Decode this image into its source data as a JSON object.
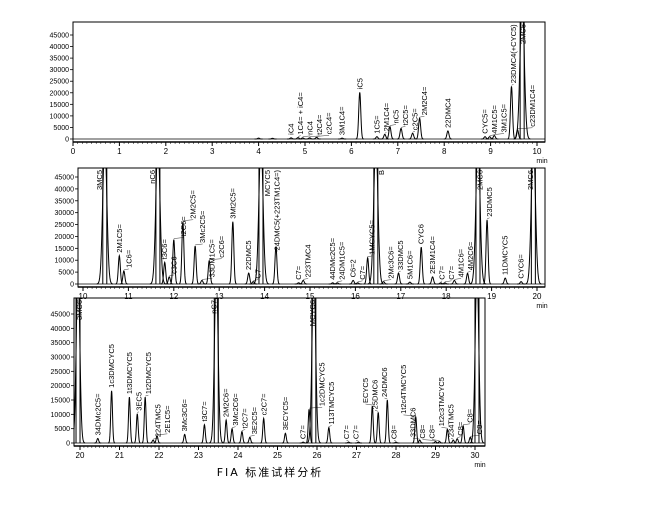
{
  "caption": "FIA 标准试样分析",
  "chart_data": [
    {
      "type": "line",
      "xlim": [
        0,
        10
      ],
      "ylim": [
        0,
        45000
      ],
      "xticks": [
        0,
        1,
        2,
        3,
        4,
        5,
        6,
        7,
        8,
        9,
        10
      ],
      "yticks": [
        0,
        5000,
        10000,
        15000,
        20000,
        25000,
        30000,
        35000,
        40000,
        45000
      ],
      "xlabel": "min",
      "peaks": [
        {
          "rt": 4.0,
          "height": 400,
          "label": ""
        },
        {
          "rt": 4.3,
          "height": 300,
          "label": ""
        },
        {
          "rt": 4.7,
          "height": 500,
          "label": "iC4"
        },
        {
          "rt": 4.85,
          "height": 600,
          "label": "1C4= + iC4="
        },
        {
          "rt": 4.95,
          "height": 500,
          "label": "nC4"
        },
        {
          "rt": 5.1,
          "height": 500,
          "label": "t2C4="
        },
        {
          "rt": 5.25,
          "height": 700,
          "label": "c2C4="
        },
        {
          "rt": 5.8,
          "height": 400,
          "label": "3M1C4="
        },
        {
          "rt": 6.18,
          "height": 20200,
          "label": "iC5"
        },
        {
          "rt": 6.55,
          "height": 1000,
          "label": "1C5="
        },
        {
          "rt": 6.72,
          "height": 2000,
          "label": "2M1C4="
        },
        {
          "rt": 6.83,
          "height": 5400,
          "label": "nC5"
        },
        {
          "rt": 7.07,
          "height": 4600,
          "label": "t2C5="
        },
        {
          "rt": 7.32,
          "height": 2500,
          "label": "c2C5="
        },
        {
          "rt": 7.47,
          "height": 9000,
          "label": "2M2C4="
        },
        {
          "rt": 8.08,
          "height": 3500,
          "label": "22DMC4"
        },
        {
          "rt": 8.88,
          "height": 1000,
          "label": "CYC5="
        },
        {
          "rt": 8.98,
          "height": 1000,
          "label": "4M1C5="
        },
        {
          "rt": 9.08,
          "height": 1500,
          "label": "3M1C5="
        },
        {
          "rt": 9.45,
          "height": 22800,
          "label": "23DMC4(+CYC5)"
        },
        {
          "rt": 9.58,
          "height": 4000,
          "label": "c23DM1C4="
        },
        {
          "rt": 9.68,
          "height": 60000,
          "label": "2MC5"
        }
      ]
    },
    {
      "type": "line",
      "xlim": [
        10,
        20
      ],
      "ylim": [
        0,
        45000
      ],
      "xticks": [
        10,
        11,
        12,
        13,
        14,
        15,
        16,
        17,
        18,
        19,
        20
      ],
      "yticks": [
        0,
        5000,
        10000,
        15000,
        20000,
        25000,
        30000,
        35000,
        40000,
        45000
      ],
      "xlabel": "min",
      "peaks": [
        {
          "rt": 10.48,
          "height": 60000,
          "label": "3MC5"
        },
        {
          "rt": 10.8,
          "height": 11900,
          "label": "2M1C5="
        },
        {
          "rt": 10.9,
          "height": 5500,
          "label": "1C6="
        },
        {
          "rt": 11.65,
          "height": 60000,
          "label": "nC6"
        },
        {
          "rt": 11.8,
          "height": 9100,
          "label": "t3C6="
        },
        {
          "rt": 11.9,
          "height": 3000,
          "label": "c3C6="
        },
        {
          "rt": 12.0,
          "height": 18700,
          "label": "t2C6="
        },
        {
          "rt": 12.2,
          "height": 26200,
          "label": "2M2C5="
        },
        {
          "rt": 12.47,
          "height": 16000,
          "label": "3Mc2C5="
        },
        {
          "rt": 12.62,
          "height": 1500,
          "label": "33DM1C5="
        },
        {
          "rt": 12.78,
          "height": 9800,
          "label": "c2C6="
        },
        {
          "rt": 13.3,
          "height": 26200,
          "label": "3Mt2C5="
        },
        {
          "rt": 13.65,
          "height": 4600,
          "label": "22DMC5"
        },
        {
          "rt": 13.75,
          "height": 1000,
          "label": "C7="
        },
        {
          "rt": 13.92,
          "height": 60000,
          "label": "MCYC5"
        },
        {
          "rt": 14.25,
          "height": 15700,
          "label": "24DMC5(+223TM1C4=)"
        },
        {
          "rt": 14.75,
          "height": 500,
          "label": "C7="
        },
        {
          "rt": 14.85,
          "height": 1500,
          "label": "223TMC4"
        },
        {
          "rt": 15.5,
          "height": 500,
          "label": "44DMc2C5="
        },
        {
          "rt": 15.6,
          "height": 500,
          "label": "24DM1C5="
        },
        {
          "rt": 15.95,
          "height": 1500,
          "label": "C6=2"
        },
        {
          "rt": 16.05,
          "height": 500,
          "label": "C7="
        },
        {
          "rt": 16.27,
          "height": 11000,
          "label": "1MCYC5="
        },
        {
          "rt": 16.45,
          "height": 60000,
          "label": "B"
        },
        {
          "rt": 16.62,
          "height": 1000,
          "label": "2Mc3C6="
        },
        {
          "rt": 16.95,
          "height": 4600,
          "label": "33DMC5"
        },
        {
          "rt": 17.2,
          "height": 800,
          "label": "5M1C6="
        },
        {
          "rt": 17.45,
          "height": 15500,
          "label": "CYC6"
        },
        {
          "rt": 17.7,
          "height": 3000,
          "label": "2E3M1C4="
        },
        {
          "rt": 17.88,
          "height": 500,
          "label": "C7="
        },
        {
          "rt": 17.97,
          "height": 500,
          "label": "C7="
        },
        {
          "rt": 18.18,
          "height": 1500,
          "label": "4M1C6="
        },
        {
          "rt": 18.47,
          "height": 4500,
          "label": "4M2C6="
        },
        {
          "rt": 18.7,
          "height": 60000,
          "label": "2MC6"
        },
        {
          "rt": 18.9,
          "height": 27000,
          "label": "23DMC5"
        },
        {
          "rt": 19.3,
          "height": 2500,
          "label": "11DMCYC5"
        },
        {
          "rt": 19.65,
          "height": 1000,
          "label": "CYC6="
        },
        {
          "rt": 19.92,
          "height": 60000,
          "label": "3MC6"
        }
      ]
    },
    {
      "type": "line",
      "xlim": [
        20,
        30
      ],
      "ylim": [
        0,
        45000
      ],
      "xticks": [
        20,
        21,
        22,
        23,
        24,
        25,
        26,
        27,
        28,
        29,
        30
      ],
      "yticks": [
        0,
        5000,
        10000,
        15000,
        20000,
        25000,
        30000,
        35000,
        40000,
        45000
      ],
      "xlabel": "min",
      "peaks": [
        {
          "rt": 19.95,
          "height": 60000,
          "label": "3MC6"
        },
        {
          "rt": 20.45,
          "height": 1600,
          "label": "34DMc2C5="
        },
        {
          "rt": 20.8,
          "height": 18200,
          "label": "1c3DMCYC5"
        },
        {
          "rt": 21.25,
          "height": 16000,
          "label": "1t3DMCYC5"
        },
        {
          "rt": 21.45,
          "height": 10200,
          "label": "3EC5"
        },
        {
          "rt": 21.65,
          "height": 16000,
          "label": "1t2DMCYC5"
        },
        {
          "rt": 21.85,
          "height": 1000,
          "label": "224TMC5"
        },
        {
          "rt": 21.95,
          "height": 2500,
          "label": "2E1C5="
        },
        {
          "rt": 22.65,
          "height": 3000,
          "label": "3Mc3C6="
        },
        {
          "rt": 23.15,
          "height": 6400,
          "label": "t3C7="
        },
        {
          "rt": 23.45,
          "height": 60000,
          "label": "nC7"
        },
        {
          "rt": 23.7,
          "height": 8000,
          "label": "2M2C6="
        },
        {
          "rt": 23.85,
          "height": 5000,
          "label": "3Mc2C6="
        },
        {
          "rt": 24.1,
          "height": 4000,
          "label": "t2C7="
        },
        {
          "rt": 24.3,
          "height": 2000,
          "label": "3E2C5="
        },
        {
          "rt": 24.65,
          "height": 8600,
          "label": "c2C7="
        },
        {
          "rt": 25.2,
          "height": 3400,
          "label": "3ECYC5="
        },
        {
          "rt": 25.65,
          "height": 300,
          "label": "C7="
        },
        {
          "rt": 25.8,
          "height": 11800,
          "label": "1c2DMCYC5"
        },
        {
          "rt": 25.92,
          "height": 60000,
          "label": "MCYC6"
        },
        {
          "rt": 26.3,
          "height": 5400,
          "label": "113TMCYC5"
        },
        {
          "rt": 26.8,
          "height": 300,
          "label": "C7="
        },
        {
          "rt": 27.05,
          "height": 300,
          "label": "C7="
        },
        {
          "rt": 27.4,
          "height": 12900,
          "label": "ECYC5"
        },
        {
          "rt": 27.55,
          "height": 10700,
          "label": "25DMC6"
        },
        {
          "rt": 27.78,
          "height": 15000,
          "label": "24DMC6"
        },
        {
          "rt": 28.0,
          "height": 300,
          "label": "C8="
        },
        {
          "rt": 28.5,
          "height": 9100,
          "label": "1t2c4TMCYC5"
        },
        {
          "rt": 28.6,
          "height": 1000,
          "label": "33DMC6"
        },
        {
          "rt": 29.0,
          "height": 500,
          "label": "C8="
        },
        {
          "rt": 29.1,
          "height": 500,
          "label": "C8="
        },
        {
          "rt": 29.3,
          "height": 4800,
          "label": "1t2c3TMCYC5"
        },
        {
          "rt": 29.45,
          "height": 1000,
          "label": "234TMC5"
        },
        {
          "rt": 29.55,
          "height": 1500,
          "label": "C8="
        },
        {
          "rt": 29.7,
          "height": 6000,
          "label": "C8="
        },
        {
          "rt": 29.88,
          "height": 2000,
          "label": "C8="
        },
        {
          "rt": 30.05,
          "height": 60000,
          "label": ""
        }
      ]
    }
  ]
}
